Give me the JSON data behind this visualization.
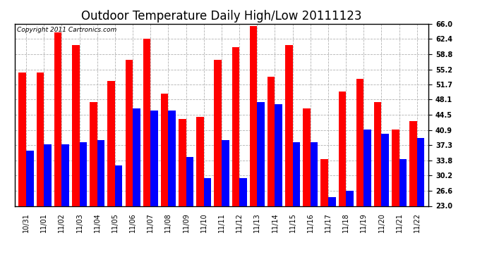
{
  "title": "Outdoor Temperature Daily High/Low 20111123",
  "copyright_text": "Copyright 2011 Cartronics.com",
  "labels": [
    "10/31",
    "11/01",
    "11/02",
    "11/03",
    "11/04",
    "11/05",
    "11/06",
    "11/07",
    "11/08",
    "11/09",
    "11/10",
    "11/11",
    "11/12",
    "11/13",
    "11/14",
    "11/15",
    "11/16",
    "11/17",
    "11/18",
    "11/19",
    "11/20",
    "11/21",
    "11/22"
  ],
  "highs": [
    54.5,
    54.5,
    64.0,
    61.0,
    47.5,
    52.5,
    57.5,
    62.5,
    49.5,
    43.5,
    44.0,
    57.5,
    60.5,
    65.5,
    53.5,
    61.0,
    46.0,
    34.0,
    50.0,
    53.0,
    47.5,
    41.0,
    43.0
  ],
  "lows": [
    36.0,
    37.5,
    37.5,
    38.0,
    38.5,
    32.5,
    46.0,
    45.5,
    45.5,
    34.5,
    29.5,
    38.5,
    29.5,
    47.5,
    47.0,
    38.0,
    38.0,
    25.0,
    26.5,
    41.0,
    40.0,
    34.0,
    39.0
  ],
  "ymin": 23.0,
  "ymax": 66.0,
  "yticks": [
    23.0,
    26.6,
    30.2,
    33.8,
    37.3,
    40.9,
    44.5,
    48.1,
    51.7,
    55.2,
    58.8,
    62.4,
    66.0
  ],
  "bar_width": 0.42,
  "high_color": "#ff0000",
  "low_color": "#0000ff",
  "bg_color": "#ffffff",
  "plot_bg_color": "#ffffff",
  "grid_color": "#aaaaaa",
  "title_fontsize": 12,
  "tick_fontsize": 7,
  "copyright_fontsize": 6.5
}
